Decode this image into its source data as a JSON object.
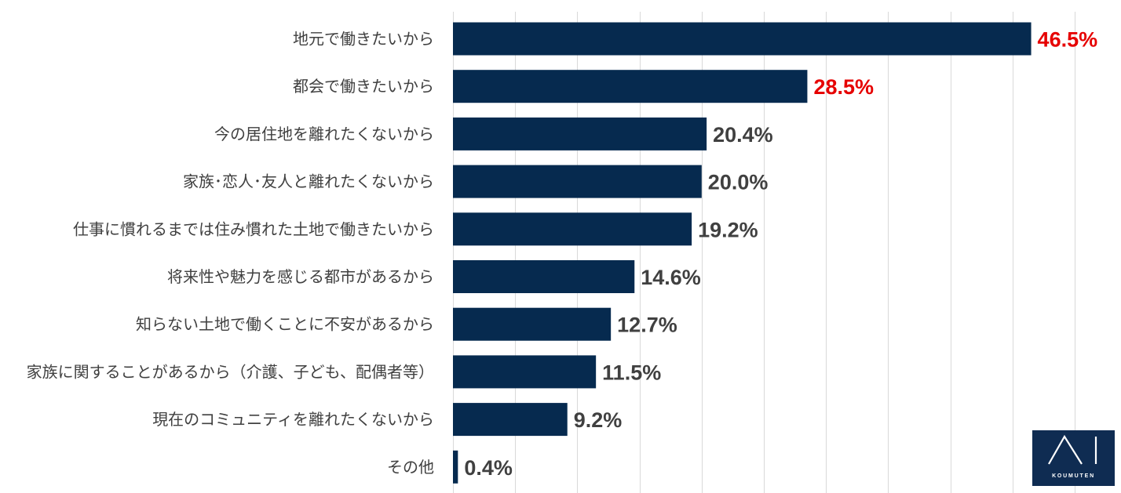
{
  "chart_data": {
    "type": "bar",
    "orientation": "horizontal",
    "categories": [
      "地元で働きたいから",
      "都会で働きたいから",
      "今の居住地を離れたくないから",
      "家族･恋人･友人と離れたくないから",
      "仕事に慣れるまでは住み慣れた土地で働きたいから",
      "将来性や魅力を感じる都市があるから",
      "知らない土地で働くことに不安があるから",
      "家族に関することがあるから（介護、子ども、配偶者等）",
      "現在のコミュニティを離れたくないから",
      "その他"
    ],
    "values": [
      46.5,
      28.5,
      20.4,
      20.0,
      19.2,
      14.6,
      12.7,
      11.5,
      9.2,
      0.4
    ],
    "data_labels": [
      "46.5%",
      "28.5%",
      "20.4%",
      "20.0%",
      "19.2%",
      "14.6%",
      "12.7%",
      "11.5%",
      "9.2%",
      "0.4%"
    ],
    "xlim": [
      0,
      50
    ],
    "grid": true,
    "grid_interval": 5,
    "legend": "none",
    "highlighted_data_labels": [
      0,
      1
    ],
    "colors": {
      "bar": "#062a4f",
      "category_label": "#404040",
      "data_label": "#404040",
      "data_label_highlight": "#e60000",
      "gridline": "#d9d9d9"
    }
  },
  "logo": {
    "mark_lettering": "AI",
    "mark_icon": "ai-mark-icon",
    "wordmark": "KOUMUTEN",
    "background": "#0f2c52"
  }
}
